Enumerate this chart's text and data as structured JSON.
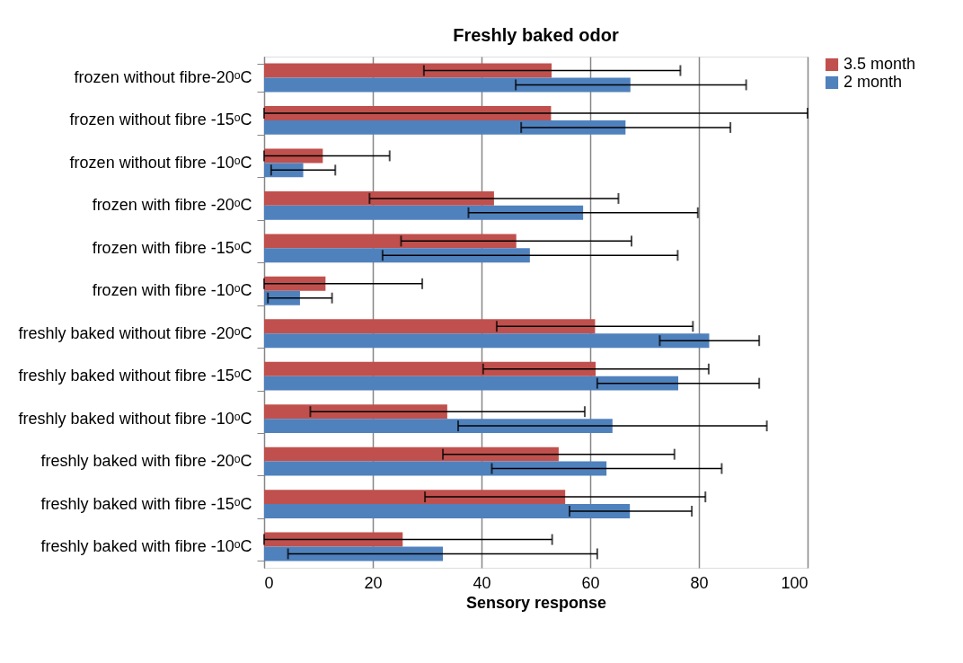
{
  "chart_data": {
    "type": "bar",
    "orientation": "horizontal",
    "title": "Freshly baked odor",
    "xlabel": "Sensory response",
    "categories": [
      "frozen without fibre-20ᵒC",
      "frozen without fibre -15ᵒC",
      "frozen without fibre -10ᵒC",
      "frozen with fibre -20ᵒC",
      "frozen with fibre -15ᵒC",
      "frozen with fibre -10ᵒC",
      "freshly baked without fibre -20ᵒC",
      "freshly baked without fibre -15ᵒC",
      "freshly baked without fibre -10ᵒC",
      "freshly baked with fibre -20ᵒC",
      "freshly baked with fibre -15ᵒC",
      "freshly baked with fibre -10ᵒC"
    ],
    "series": [
      {
        "name": "3.5 month",
        "color": "#c0504d",
        "values": [
          52.9,
          52.8,
          10.8,
          42.3,
          46.4,
          11.3,
          60.9,
          61.0,
          33.7,
          54.2,
          55.4,
          25.5
        ],
        "errors": [
          [
            29.4,
            76.6
          ],
          [
            0,
            100
          ],
          [
            0,
            23.1
          ],
          [
            19.4,
            65.2
          ],
          [
            25.2,
            67.6
          ],
          [
            0,
            29.1
          ],
          [
            42.8,
            78.9
          ],
          [
            40.3,
            81.8
          ],
          [
            8.5,
            59.0
          ],
          [
            32.9,
            75.5
          ],
          [
            29.6,
            81.2
          ],
          [
            0,
            53.0
          ]
        ]
      },
      {
        "name": "2 month",
        "color": "#4f81bd",
        "values": [
          67.4,
          66.5,
          7.2,
          58.7,
          48.9,
          6.6,
          81.9,
          76.2,
          64.1,
          63.0,
          67.3,
          32.9
        ],
        "errors": [
          [
            46.3,
            88.7
          ],
          [
            47.3,
            85.8
          ],
          [
            1.3,
            13.1
          ],
          [
            37.6,
            79.8
          ],
          [
            21.8,
            76.1
          ],
          [
            0.7,
            12.5
          ],
          [
            72.8,
            91.1
          ],
          [
            61.3,
            91.1
          ],
          [
            35.7,
            92.5
          ],
          [
            41.9,
            84.2
          ],
          [
            56.2,
            78.7
          ],
          [
            4.4,
            61.3
          ]
        ]
      }
    ],
    "xlim": [
      0,
      100
    ],
    "xticks": [
      0,
      20,
      40,
      60,
      80,
      100
    ],
    "grid": "x",
    "legend": "right"
  }
}
